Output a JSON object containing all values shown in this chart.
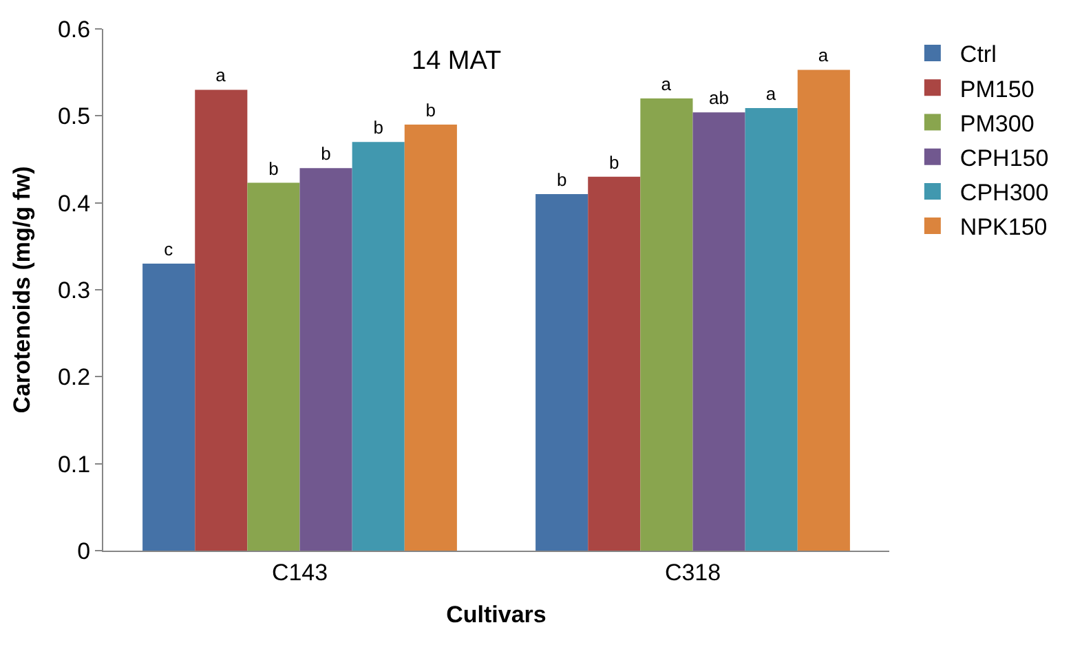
{
  "chart_data": {
    "type": "bar",
    "title": "14 MAT",
    "xlabel": "Cultivars",
    "ylabel": "Carotenoids (mg/g fw)",
    "categories": [
      "C143",
      "C318"
    ],
    "series": [
      {
        "name": "Ctrl",
        "color": "#4572a7",
        "values": [
          0.33,
          0.41
        ],
        "value_labels": [
          "c",
          "b"
        ]
      },
      {
        "name": "PM150",
        "color": "#aa4643",
        "values": [
          0.53,
          0.43
        ],
        "value_labels": [
          "a",
          "b"
        ]
      },
      {
        "name": "PM300",
        "color": "#89a54e",
        "values": [
          0.423,
          0.52
        ],
        "value_labels": [
          "b",
          "a"
        ]
      },
      {
        "name": "CPH150",
        "color": "#71588f",
        "values": [
          0.44,
          0.504
        ],
        "value_labels": [
          "b",
          "ab"
        ]
      },
      {
        "name": "CPH300",
        "color": "#4198af",
        "values": [
          0.47,
          0.509
        ],
        "value_labels": [
          "b",
          "a"
        ]
      },
      {
        "name": "NPK150",
        "color": "#db843d",
        "values": [
          0.49,
          0.553
        ],
        "value_labels": [
          "b",
          "a"
        ]
      }
    ],
    "ylim": [
      0,
      0.6
    ],
    "yticks": [
      {
        "value": 0,
        "label": "0"
      },
      0.1,
      0.2,
      0.3,
      0.4,
      0.5,
      0.6
    ],
    "grid": false,
    "legend": "right"
  }
}
